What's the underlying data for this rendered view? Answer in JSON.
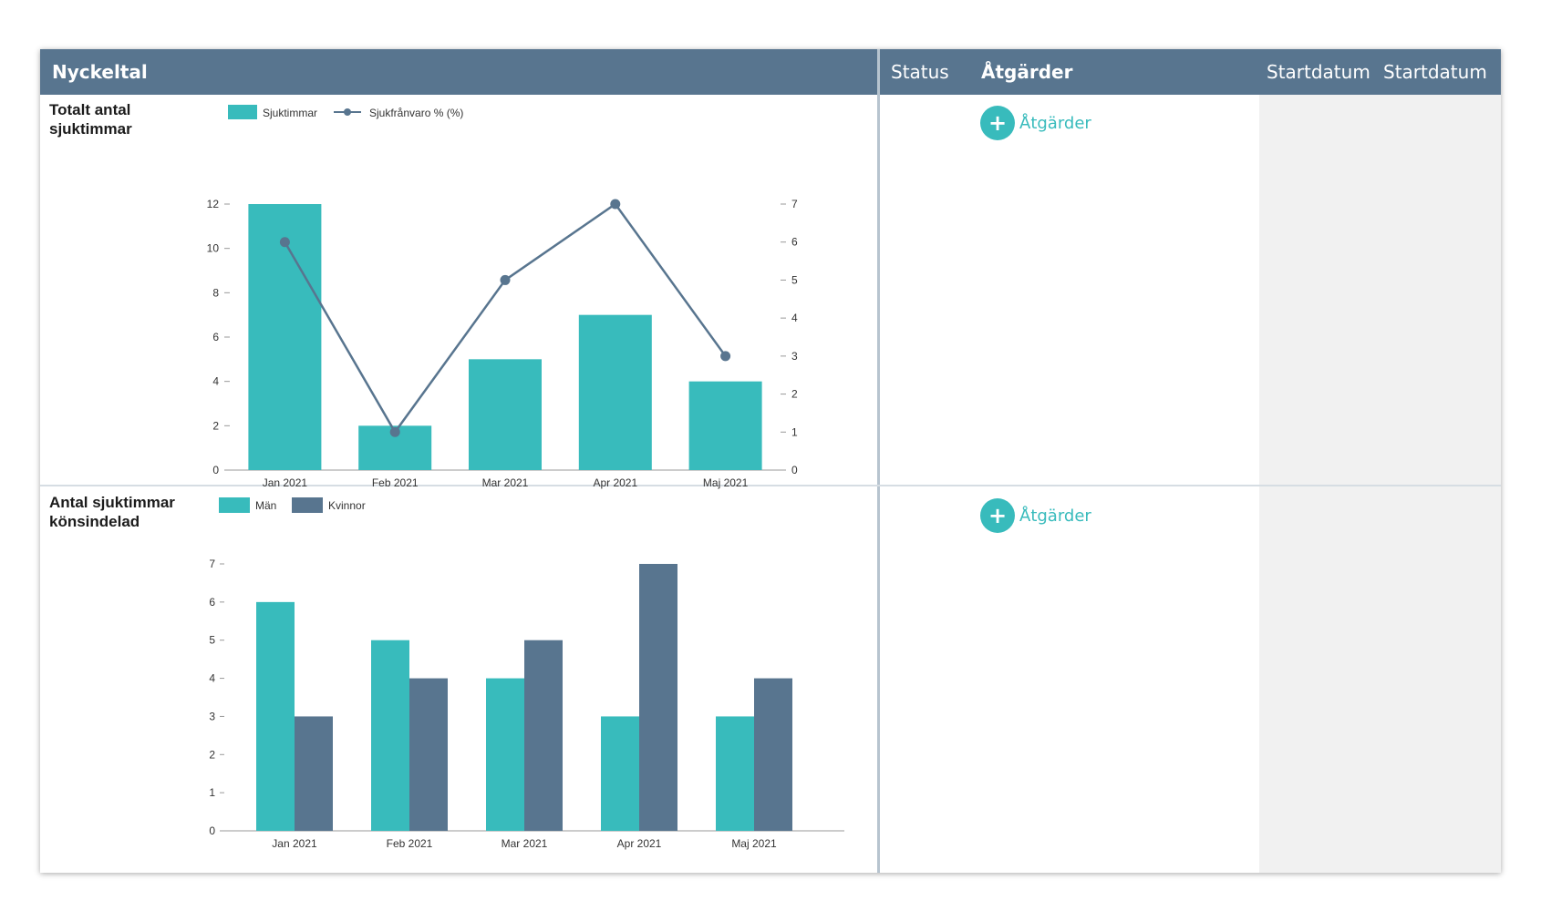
{
  "header": {
    "key_figures": "Nyckeltal",
    "status": "Status",
    "actions": "Åtgärder",
    "start_date_1": "Startdatum",
    "start_date_2": "Startdatum"
  },
  "rows": [
    {
      "title_line1": "Totalt antal",
      "title_line2": "sjuktimmar",
      "action_label": "Åtgärder"
    },
    {
      "title_line1": "Antal sjuktimmar",
      "title_line2": "könsindelad",
      "action_label": "Åtgärder"
    }
  ],
  "colors": {
    "teal": "#38bbbc",
    "slate": "#58758f",
    "axis": "#999999"
  },
  "icons": {
    "action": "plus-circle-icon"
  },
  "chart_data": [
    {
      "type": "bar",
      "title": "",
      "categories": [
        "Jan 2021",
        "Feb 2021",
        "Mar 2021",
        "Apr 2021",
        "Maj 2021"
      ],
      "series": [
        {
          "name": "Sjuktimmar",
          "type": "bar",
          "axis": "left",
          "values": [
            12,
            2,
            5,
            7,
            4
          ]
        },
        {
          "name": "Sjukfrånvaro % (%)",
          "type": "line",
          "axis": "right",
          "values": [
            6,
            1,
            5,
            7,
            3
          ]
        }
      ],
      "ylim": [
        0,
        12
      ],
      "y_ticks": [
        0,
        2,
        4,
        6,
        8,
        10,
        12
      ],
      "y2lim": [
        0,
        7
      ],
      "y2_ticks": [
        0,
        1,
        2,
        3,
        4,
        5,
        6,
        7
      ],
      "legend": "top-left",
      "grid": false
    },
    {
      "type": "bar",
      "title": "",
      "categories": [
        "Jan 2021",
        "Feb 2021",
        "Mar 2021",
        "Apr 2021",
        "Maj 2021"
      ],
      "series": [
        {
          "name": "Män",
          "values": [
            6,
            5,
            4,
            3,
            3
          ]
        },
        {
          "name": "Kvinnor",
          "values": [
            3,
            4,
            5,
            7,
            4
          ]
        }
      ],
      "ylim": [
        0,
        7
      ],
      "y_ticks": [
        0,
        1,
        2,
        3,
        4,
        5,
        6,
        7
      ],
      "legend": "top-left",
      "grid": false
    }
  ]
}
